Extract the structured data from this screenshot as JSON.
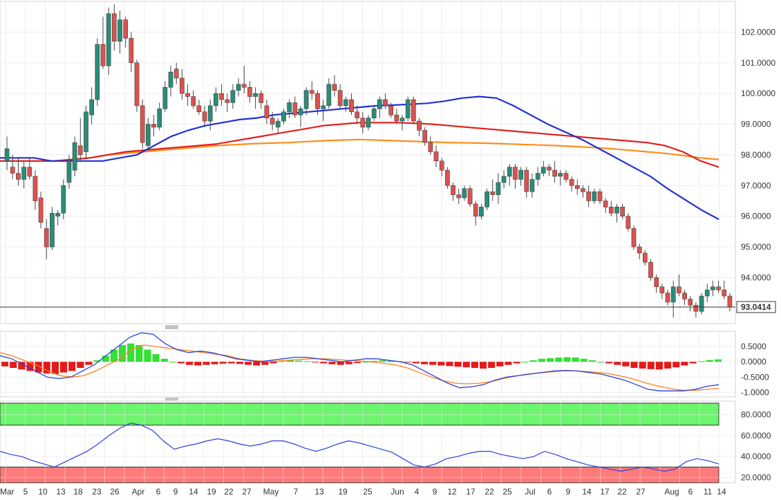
{
  "chart_data": {
    "type": "candlestick",
    "x_labels": [
      "Mar",
      "5",
      "10",
      "13",
      "18",
      "23",
      "26",
      "Apr",
      "6",
      "9",
      "14",
      "19",
      "22",
      "27",
      "May",
      "7",
      "13",
      "19",
      "25",
      "Jun",
      "4",
      "9",
      "12",
      "17",
      "22",
      "25",
      "Jul",
      "6",
      "9",
      "14",
      "17",
      "22",
      "27",
      "Aug",
      "6",
      "11",
      "14"
    ],
    "price_axis": {
      "ticks": [
        "102.0000",
        "101.0000",
        "100.0000",
        "99.0000",
        "98.0000",
        "97.0000",
        "96.0000",
        "95.0000",
        "94.0000"
      ],
      "range": [
        92.5,
        103.0
      ]
    },
    "last_price": "93.0414",
    "candles": [
      [
        97.8,
        98.6,
        97.5,
        98.2
      ],
      [
        97.6,
        98.0,
        97.2,
        97.4
      ],
      [
        97.4,
        97.9,
        97.0,
        97.2
      ],
      [
        97.2,
        97.8,
        96.9,
        97.6
      ],
      [
        97.6,
        97.9,
        97.2,
        97.3
      ],
      [
        97.3,
        97.5,
        96.2,
        96.5
      ],
      [
        96.6,
        96.8,
        95.6,
        95.8
      ],
      [
        95.6,
        95.9,
        94.6,
        95.0
      ],
      [
        95.0,
        96.3,
        94.9,
        96.1
      ],
      [
        96.0,
        96.2,
        95.7,
        96.1
      ],
      [
        96.1,
        97.2,
        95.9,
        97.0
      ],
      [
        97.1,
        98.0,
        96.9,
        97.8
      ],
      [
        97.5,
        98.6,
        97.3,
        98.4
      ],
      [
        98.3,
        99.2,
        97.8,
        98.0
      ],
      [
        98.1,
        99.6,
        97.9,
        99.4
      ],
      [
        99.3,
        100.2,
        99.0,
        99.8
      ],
      [
        99.8,
        101.8,
        99.6,
        101.6
      ],
      [
        101.6,
        102.5,
        100.8,
        100.9
      ],
      [
        100.9,
        102.8,
        100.6,
        102.6
      ],
      [
        102.6,
        102.9,
        101.4,
        101.7
      ],
      [
        101.7,
        102.7,
        101.3,
        102.4
      ],
      [
        102.4,
        102.5,
        101.5,
        101.8
      ],
      [
        101.8,
        102.0,
        100.7,
        101.0
      ],
      [
        101.0,
        101.1,
        99.4,
        99.6
      ],
      [
        99.6,
        99.8,
        98.2,
        98.4
      ],
      [
        98.3,
        99.2,
        98.2,
        99.0
      ],
      [
        99.0,
        99.3,
        98.6,
        98.9
      ],
      [
        98.9,
        99.7,
        98.8,
        99.5
      ],
      [
        99.5,
        100.4,
        99.4,
        100.2
      ],
      [
        100.2,
        100.9,
        99.9,
        100.7
      ],
      [
        100.8,
        101.0,
        100.3,
        100.5
      ],
      [
        100.5,
        100.8,
        99.8,
        100.0
      ],
      [
        100.0,
        100.3,
        99.6,
        99.9
      ],
      [
        99.9,
        100.1,
        99.5,
        99.6
      ],
      [
        99.6,
        99.8,
        99.3,
        99.4
      ],
      [
        99.4,
        99.6,
        98.9,
        99.1
      ],
      [
        99.1,
        99.8,
        98.8,
        99.6
      ],
      [
        99.6,
        100.2,
        99.4,
        100.0
      ],
      [
        100.0,
        100.3,
        99.6,
        99.8
      ],
      [
        99.8,
        100.0,
        99.4,
        99.7
      ],
      [
        99.7,
        100.3,
        99.5,
        100.1
      ],
      [
        100.1,
        100.5,
        99.9,
        100.3
      ],
      [
        100.3,
        100.9,
        100.0,
        100.2
      ],
      [
        100.2,
        100.4,
        99.7,
        99.9
      ],
      [
        99.9,
        100.2,
        99.5,
        100.0
      ],
      [
        100.0,
        100.1,
        99.5,
        99.7
      ],
      [
        99.6,
        99.8,
        99.0,
        99.2
      ],
      [
        99.2,
        99.4,
        98.8,
        99.0
      ],
      [
        98.9,
        99.2,
        98.7,
        99.1
      ],
      [
        99.1,
        99.5,
        99.0,
        99.4
      ],
      [
        99.4,
        99.8,
        99.2,
        99.7
      ],
      [
        99.7,
        99.9,
        99.2,
        99.3
      ],
      [
        99.3,
        99.6,
        98.9,
        99.5
      ],
      [
        99.5,
        100.2,
        99.3,
        100.1
      ],
      [
        100.1,
        100.4,
        99.8,
        100.0
      ],
      [
        100.0,
        100.1,
        99.3,
        99.5
      ],
      [
        99.5,
        99.8,
        99.1,
        99.6
      ],
      [
        99.6,
        100.5,
        99.5,
        100.3
      ],
      [
        100.3,
        100.6,
        99.9,
        100.1
      ],
      [
        100.1,
        100.3,
        99.5,
        99.6
      ],
      [
        99.6,
        99.9,
        99.4,
        99.8
      ],
      [
        99.8,
        100.0,
        99.3,
        99.4
      ],
      [
        99.4,
        99.6,
        99.0,
        99.2
      ],
      [
        99.2,
        99.4,
        98.7,
        98.9
      ],
      [
        98.9,
        99.3,
        98.8,
        99.2
      ],
      [
        99.2,
        99.6,
        99.1,
        99.5
      ],
      [
        99.5,
        99.9,
        99.2,
        99.8
      ],
      [
        99.8,
        100.0,
        99.5,
        99.6
      ],
      [
        99.6,
        99.7,
        99.2,
        99.3
      ],
      [
        99.3,
        99.5,
        99.0,
        99.1
      ],
      [
        99.1,
        99.3,
        98.8,
        99.2
      ],
      [
        99.2,
        99.9,
        99.1,
        99.8
      ],
      [
        99.8,
        99.9,
        99.0,
        99.1
      ],
      [
        99.1,
        99.2,
        98.6,
        98.8
      ],
      [
        98.8,
        98.9,
        98.3,
        98.4
      ],
      [
        98.4,
        98.6,
        98.0,
        98.1
      ],
      [
        98.1,
        98.3,
        97.6,
        97.8
      ],
      [
        97.8,
        97.9,
        97.3,
        97.5
      ],
      [
        97.5,
        97.6,
        96.9,
        97.0
      ],
      [
        97.0,
        97.1,
        96.5,
        96.7
      ],
      [
        96.7,
        96.9,
        96.4,
        96.6
      ],
      [
        96.6,
        97.0,
        96.5,
        96.9
      ],
      [
        96.9,
        97.0,
        96.3,
        96.4
      ],
      [
        96.4,
        96.5,
        95.7,
        96.0
      ],
      [
        96.0,
        96.4,
        95.9,
        96.3
      ],
      [
        96.3,
        96.9,
        96.2,
        96.8
      ],
      [
        96.8,
        97.2,
        96.5,
        96.7
      ],
      [
        96.7,
        97.4,
        96.4,
        97.1
      ],
      [
        97.1,
        97.5,
        96.9,
        97.3
      ],
      [
        97.3,
        97.7,
        97.0,
        97.6
      ],
      [
        97.6,
        97.7,
        96.9,
        97.2
      ],
      [
        97.2,
        97.6,
        97.0,
        97.5
      ],
      [
        97.5,
        97.6,
        96.6,
        96.8
      ],
      [
        96.8,
        97.4,
        96.6,
        97.2
      ],
      [
        97.2,
        97.6,
        97.0,
        97.4
      ],
      [
        97.4,
        97.8,
        97.3,
        97.6
      ],
      [
        97.6,
        97.7,
        97.3,
        97.5
      ],
      [
        97.5,
        97.8,
        97.1,
        97.3
      ],
      [
        97.3,
        97.5,
        97.0,
        97.4
      ],
      [
        97.4,
        97.5,
        97.1,
        97.2
      ],
      [
        97.2,
        97.3,
        96.8,
        97.0
      ],
      [
        97.0,
        97.2,
        96.7,
        96.9
      ],
      [
        96.9,
        97.0,
        96.6,
        96.8
      ],
      [
        96.8,
        97.0,
        96.3,
        96.5
      ],
      [
        96.5,
        96.9,
        96.4,
        96.8
      ],
      [
        96.8,
        96.9,
        96.4,
        96.5
      ],
      [
        96.5,
        96.6,
        96.1,
        96.3
      ],
      [
        96.3,
        96.5,
        96.0,
        96.1
      ],
      [
        96.1,
        96.4,
        95.8,
        96.3
      ],
      [
        96.3,
        96.4,
        95.9,
        96.0
      ],
      [
        96.0,
        96.1,
        95.5,
        95.6
      ],
      [
        95.6,
        95.7,
        94.9,
        95.0
      ],
      [
        95.0,
        95.1,
        94.6,
        94.8
      ],
      [
        94.8,
        94.9,
        94.4,
        94.5
      ],
      [
        94.5,
        94.6,
        93.9,
        94.0
      ],
      [
        94.0,
        94.1,
        93.5,
        93.7
      ],
      [
        93.7,
        93.8,
        93.3,
        93.5
      ],
      [
        93.5,
        93.6,
        93.1,
        93.2
      ],
      [
        93.2,
        93.9,
        92.7,
        93.7
      ],
      [
        93.7,
        94.1,
        93.4,
        93.5
      ],
      [
        93.5,
        93.6,
        93.1,
        93.3
      ],
      [
        93.3,
        93.4,
        92.9,
        93.1
      ],
      [
        93.1,
        93.2,
        92.7,
        92.9
      ],
      [
        92.9,
        93.5,
        92.8,
        93.4
      ],
      [
        93.4,
        93.8,
        93.2,
        93.6
      ],
      [
        93.6,
        93.9,
        93.4,
        93.7
      ],
      [
        93.7,
        93.9,
        93.5,
        93.6
      ],
      [
        93.6,
        93.9,
        93.3,
        93.4
      ],
      [
        93.4,
        93.5,
        92.9,
        93.04
      ]
    ],
    "ma_blue": [
      97.9,
      97.9,
      97.9,
      97.8,
      97.8,
      97.8,
      97.8,
      97.9,
      98.0,
      98.3,
      98.6,
      98.8,
      98.95,
      99.05,
      99.15,
      99.2,
      99.3,
      99.35,
      99.4,
      99.45,
      99.5,
      99.55,
      99.6,
      99.62,
      99.65,
      99.68,
      99.75,
      99.85,
      99.9,
      99.85,
      99.6,
      99.3,
      99.0,
      98.75,
      98.5,
      98.2,
      97.9,
      97.6,
      97.3,
      96.9,
      96.55,
      96.2,
      95.9
    ],
    "ma_red": [
      97.8,
      97.8,
      97.8,
      97.8,
      97.85,
      97.9,
      98.0,
      98.1,
      98.15,
      98.2,
      98.25,
      98.3,
      98.35,
      98.45,
      98.55,
      98.65,
      98.75,
      98.85,
      98.95,
      99.0,
      99.05,
      99.05,
      99.05,
      99.03,
      99.0,
      98.95,
      98.9,
      98.85,
      98.8,
      98.75,
      98.7,
      98.65,
      98.6,
      98.55,
      98.5,
      98.45,
      98.4,
      98.3,
      98.1,
      97.8,
      97.6
    ],
    "ma_orange": [
      97.8,
      97.8,
      97.8,
      97.8,
      97.85,
      97.9,
      98.0,
      98.05,
      98.1,
      98.15,
      98.2,
      98.25,
      98.3,
      98.33,
      98.36,
      98.38,
      98.4,
      98.43,
      98.46,
      98.48,
      98.5,
      98.48,
      98.46,
      98.44,
      98.42,
      98.4,
      98.39,
      98.38,
      98.36,
      98.34,
      98.32,
      98.3,
      98.27,
      98.24,
      98.2,
      98.15,
      98.1,
      98.05,
      97.98,
      97.9,
      97.85
    ],
    "macd_axis": {
      "ticks": [
        "0.5000",
        "0.0000",
        "-0.5000",
        "-1.0000"
      ],
      "range": [
        -1.15,
        1.0
      ]
    },
    "macd_hist": [
      -0.15,
      -0.2,
      -0.25,
      -0.3,
      -0.35,
      -0.38,
      -0.4,
      -0.35,
      -0.3,
      -0.2,
      -0.1,
      0.05,
      0.2,
      0.4,
      0.55,
      0.6,
      0.55,
      0.4,
      0.25,
      0.1,
      0.0,
      -0.05,
      -0.1,
      -0.12,
      -0.1,
      -0.08,
      -0.06,
      -0.05,
      -0.07,
      -0.1,
      -0.12,
      -0.1,
      -0.05,
      0.02,
      0.05,
      0.04,
      0.02,
      -0.02,
      -0.05,
      -0.08,
      -0.1,
      -0.08,
      -0.04,
      0.0,
      0.03,
      0.05,
      0.04,
      0.02,
      -0.02,
      -0.05,
      -0.08,
      -0.1,
      -0.12,
      -0.14,
      -0.16,
      -0.18,
      -0.2,
      -0.22,
      -0.2,
      -0.15,
      -0.1,
      -0.05,
      0.0,
      0.05,
      0.1,
      0.12,
      0.14,
      0.15,
      0.14,
      0.1,
      0.05,
      0.0,
      -0.05,
      -0.1,
      -0.15,
      -0.2,
      -0.22,
      -0.24,
      -0.25,
      -0.22,
      -0.18,
      -0.12,
      -0.05,
      0.02,
      0.06,
      0.08
    ],
    "macd_line": [
      0.2,
      0.1,
      -0.1,
      -0.3,
      -0.5,
      -0.55,
      -0.5,
      -0.3,
      -0.1,
      0.2,
      0.5,
      0.8,
      0.95,
      0.9,
      0.6,
      0.4,
      0.3,
      0.35,
      0.3,
      0.2,
      0.1,
      0.05,
      0.0,
      0.05,
      0.1,
      0.15,
      0.15,
      0.1,
      0.05,
      0.0,
      0.05,
      0.1,
      0.1,
      0.05,
      0.0,
      -0.1,
      -0.3,
      -0.5,
      -0.7,
      -0.85,
      -0.82,
      -0.75,
      -0.6,
      -0.5,
      -0.45,
      -0.4,
      -0.35,
      -0.3,
      -0.28,
      -0.3,
      -0.35,
      -0.4,
      -0.5,
      -0.6,
      -0.75,
      -0.9,
      -0.95,
      -0.95,
      -0.95,
      -0.9,
      -0.8,
      -0.75
    ],
    "signal_line": [
      0.3,
      0.2,
      0.05,
      -0.1,
      -0.3,
      -0.45,
      -0.5,
      -0.45,
      -0.3,
      -0.1,
      0.1,
      0.4,
      0.55,
      0.5,
      0.45,
      0.4,
      0.35,
      0.3,
      0.25,
      0.2,
      0.1,
      0.05,
      0.02,
      0.02,
      0.05,
      0.08,
      0.1,
      0.1,
      0.08,
      0.05,
      0.03,
      0.0,
      -0.05,
      -0.1,
      -0.2,
      -0.35,
      -0.5,
      -0.62,
      -0.7,
      -0.72,
      -0.7,
      -0.65,
      -0.55,
      -0.47,
      -0.4,
      -0.36,
      -0.33,
      -0.3,
      -0.3,
      -0.32,
      -0.35,
      -0.4,
      -0.48,
      -0.58,
      -0.7,
      -0.8,
      -0.88,
      -0.93,
      -0.93,
      -0.9,
      -0.87
    ],
    "rsi_axis": {
      "ticks": [
        "80.0000",
        "60.0000",
        "40.0000",
        "20.0000"
      ],
      "range": [
        15,
        93
      ],
      "overbought": 70,
      "oversold": 30
    },
    "rsi": [
      45,
      42,
      40,
      36,
      33,
      30,
      35,
      40,
      45,
      52,
      60,
      67,
      72,
      70,
      65,
      55,
      47,
      50,
      52,
      55,
      57,
      55,
      52,
      50,
      52,
      55,
      55,
      52,
      48,
      45,
      48,
      52,
      55,
      53,
      50,
      47,
      44,
      38,
      32,
      30,
      33,
      38,
      40,
      43,
      45,
      45,
      42,
      40,
      38,
      40,
      45,
      42,
      38,
      35,
      32,
      30,
      28,
      26,
      28,
      30,
      28,
      26,
      28,
      35,
      38,
      36,
      33
    ]
  }
}
